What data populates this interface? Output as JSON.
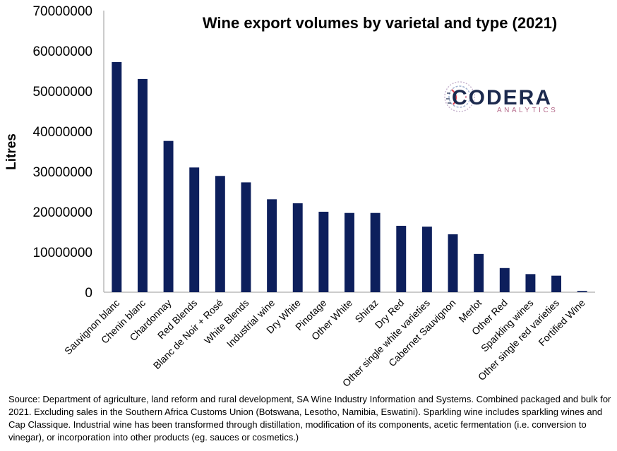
{
  "chart_data": {
    "type": "bar",
    "title": "Wine export volumes by varietal and type (2021)",
    "xlabel": "",
    "ylabel": "Litres",
    "ylim": [
      0,
      70000000
    ],
    "yticks": [
      "0",
      "10000000",
      "20000000",
      "30000000",
      "40000000",
      "50000000",
      "60000000",
      "70000000"
    ],
    "grid": false,
    "legend": "none",
    "bar_color": "#0d1f5c",
    "categories": [
      "Sauvignon blanc",
      "Chenin blanc",
      "Chardonnay",
      "Red Blends",
      "Blanc de Noir + Rosé",
      "White Blends",
      "Industrial wine",
      "Dry White",
      "Pinotage",
      "Other White",
      "Shiraz",
      "Dry Red",
      "Other single white varieties",
      "Cabernet Sauvignon",
      "Merlot",
      "Other Red",
      "Sparkling wines",
      "Other single red varieties",
      "Fortified Wine"
    ],
    "values": [
      57200000,
      53000000,
      37600000,
      31000000,
      28900000,
      27300000,
      23100000,
      22100000,
      20000000,
      19700000,
      19700000,
      16500000,
      16300000,
      14400000,
      9500000,
      6000000,
      4500000,
      4100000,
      300000
    ]
  },
  "logo": {
    "name": "CODERA",
    "tagline": "ANALYTICS"
  },
  "source_note": "Source:  Department of agriculture, land reform and rural development, SA Wine Industry Information and Systems. Combined packaged and bulk for 2021.  Excluding sales in the Southern Africa Customs Union (Botswana, Lesotho, Namibia, Eswatini). Sparkling wine includes sparkling wines and Cap Classique. Industrial wine has been transformed through distillation, modification of its components, acetic fermentation (i.e. conversion to vinegar), or incorporation into other products (eg. sauces or cosmetics.)"
}
